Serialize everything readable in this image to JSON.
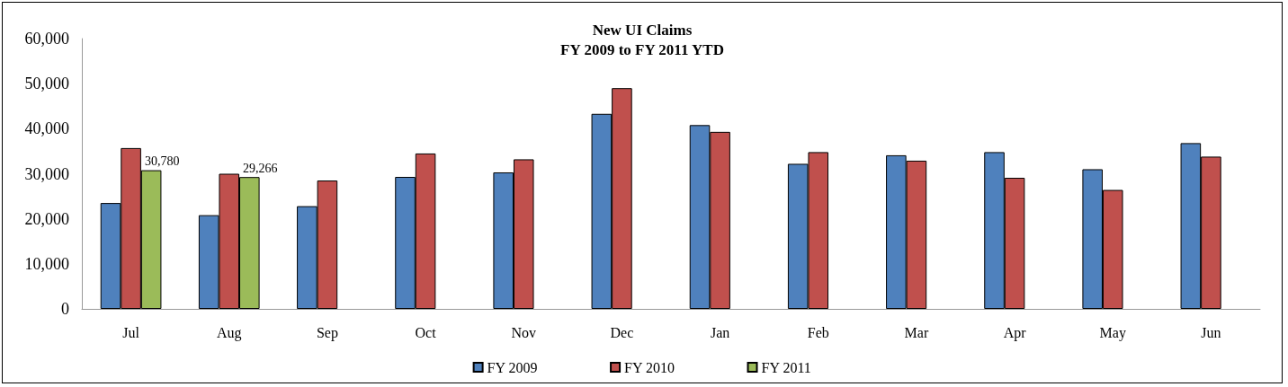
{
  "chart_data": {
    "type": "bar",
    "title": "New UI Claims\nFY 2009 to FY 2011 YTD",
    "categories": [
      "Jul",
      "Aug",
      "Sep",
      "Oct",
      "Nov",
      "Dec",
      "Jan",
      "Feb",
      "Mar",
      "Apr",
      "May",
      "Jun"
    ],
    "series": [
      {
        "name": "FY 2009",
        "color": "#4f81bd",
        "values": [
          23500,
          20800,
          22800,
          29300,
          30300,
          43300,
          40800,
          32200,
          34100,
          34800,
          31000,
          36800
        ]
      },
      {
        "name": "FY 2010",
        "color": "#c0504d",
        "values": [
          35700,
          30000,
          28500,
          34500,
          33200,
          49000,
          39300,
          34800,
          32900,
          29100,
          26400,
          33800
        ]
      },
      {
        "name": "FY 2011",
        "color": "#9bbb59",
        "values": [
          30780,
          29266,
          null,
          null,
          null,
          null,
          null,
          null,
          null,
          null,
          null,
          null
        ],
        "value_labels": [
          "30,780",
          "29,266",
          null,
          null,
          null,
          null,
          null,
          null,
          null,
          null,
          null,
          null
        ]
      }
    ],
    "ylim": [
      0,
      60000
    ],
    "yticks": [
      {
        "value": 0,
        "label": "0"
      },
      {
        "value": 10000,
        "label": "10,000"
      },
      {
        "value": 20000,
        "label": "20,000"
      },
      {
        "value": 30000,
        "label": "30,000"
      },
      {
        "value": 40000,
        "label": "40,000"
      },
      {
        "value": 50000,
        "label": "50,000"
      },
      {
        "value": 60000,
        "label": "60,000"
      }
    ],
    "grid": false,
    "legend": "bottom"
  }
}
